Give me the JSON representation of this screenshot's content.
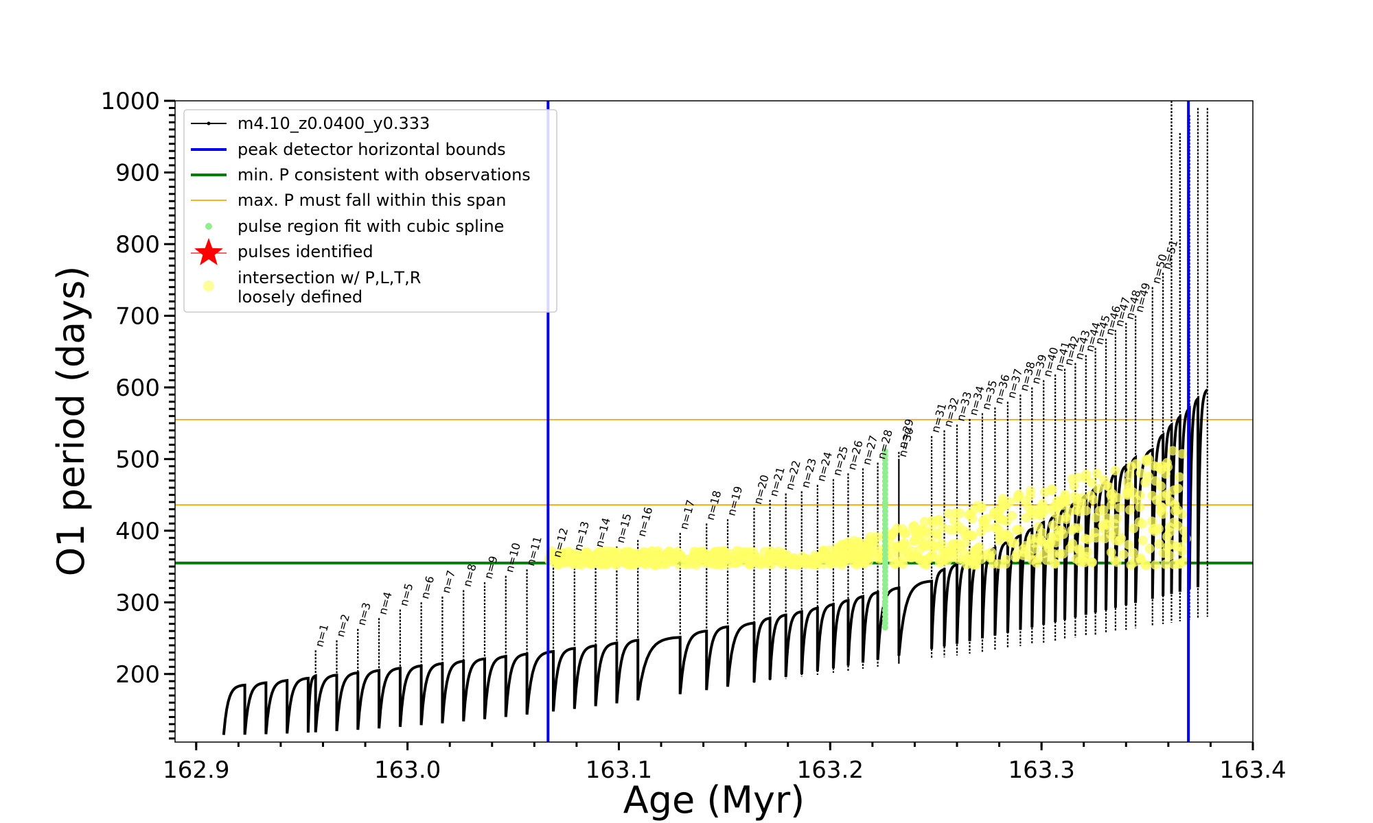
{
  "chart_data": {
    "type": "line",
    "xlabel": "Age (Myr)",
    "ylabel": "O1 period (days)",
    "xlim": [
      162.9,
      163.4
    ],
    "ylim": [
      105,
      1000
    ],
    "x_ticks": [
      "162.9",
      "163.0",
      "163.1",
      "163.2",
      "163.3",
      "163.4"
    ],
    "x_tick_values": [
      162.9,
      163.0,
      163.1,
      163.2,
      163.3,
      163.4
    ],
    "y_ticks": [
      "200",
      "300",
      "400",
      "500",
      "600",
      "700",
      "800",
      "900",
      "1000"
    ],
    "y_tick_values": [
      200,
      300,
      400,
      500,
      600,
      700,
      800,
      900,
      1000
    ],
    "legend_position": "upper-left",
    "legend": [
      {
        "label": "m4.10_z0.0400_y0.333",
        "kind": "line-dot",
        "color": "#000000"
      },
      {
        "label": "peak detector horizontal bounds",
        "kind": "line",
        "color": "#0000ee"
      },
      {
        "label": "min. P consistent with observations",
        "kind": "line",
        "color": "#008000"
      },
      {
        "label": "max. P must fall within this span",
        "kind": "thin-line",
        "color": "#ffa500"
      },
      {
        "label": "pulse region fit with cubic spline",
        "kind": "dot",
        "color": "#90ee90"
      },
      {
        "label": "pulses identified",
        "kind": "star",
        "color": "#ff0000"
      },
      {
        "label": "intersection w/ P,L,T,R",
        "label2": "loosely defined",
        "kind": "big-dot",
        "color": "#ffff99"
      }
    ],
    "vertical_lines": [
      {
        "x": 163.0665,
        "color": "#0000ee",
        "role": "peak detector horizontal bounds"
      },
      {
        "x": 163.3695,
        "color": "#0000ee",
        "role": "peak detector horizontal bounds"
      }
    ],
    "horizontal_lines": [
      {
        "y": 355,
        "color": "#008000",
        "role": "min. P consistent with observations"
      },
      {
        "y": 436,
        "color": "#ffa500",
        "role": "max. P span lower"
      },
      {
        "y": 555,
        "color": "#ffa500",
        "role": "max. P span upper"
      }
    ],
    "pulses": [
      {
        "n": 1,
        "x": 162.9565,
        "peak": 233
      },
      {
        "n": 2,
        "x": 162.9665,
        "peak": 247
      },
      {
        "n": 3,
        "x": 162.9765,
        "peak": 263
      },
      {
        "n": 4,
        "x": 162.9865,
        "peak": 278
      },
      {
        "n": 5,
        "x": 162.9965,
        "peak": 290
      },
      {
        "n": 6,
        "x": 163.0065,
        "peak": 300
      },
      {
        "n": 7,
        "x": 163.0165,
        "peak": 308
      },
      {
        "n": 8,
        "x": 163.0265,
        "peak": 317
      },
      {
        "n": 9,
        "x": 163.0365,
        "peak": 328
      },
      {
        "n": 10,
        "x": 163.0465,
        "peak": 337
      },
      {
        "n": 11,
        "x": 163.0565,
        "peak": 346
      },
      {
        "n": 12,
        "x": 163.069,
        "peak": 358
      },
      {
        "n": 13,
        "x": 163.079,
        "peak": 367
      },
      {
        "n": 14,
        "x": 163.089,
        "peak": 372
      },
      {
        "n": 15,
        "x": 163.099,
        "peak": 378
      },
      {
        "n": 16,
        "x": 163.109,
        "peak": 387
      },
      {
        "n": 17,
        "x": 163.129,
        "peak": 397
      },
      {
        "n": 18,
        "x": 163.1415,
        "peak": 410
      },
      {
        "n": 19,
        "x": 163.1515,
        "peak": 416
      },
      {
        "n": 20,
        "x": 163.164,
        "peak": 432
      },
      {
        "n": 21,
        "x": 163.1715,
        "peak": 443
      },
      {
        "n": 22,
        "x": 163.179,
        "peak": 452
      },
      {
        "n": 23,
        "x": 163.1865,
        "peak": 455
      },
      {
        "n": 24,
        "x": 163.194,
        "peak": 464
      },
      {
        "n": 25,
        "x": 163.2015,
        "peak": 472
      },
      {
        "n": 26,
        "x": 163.2085,
        "peak": 480
      },
      {
        "n": 27,
        "x": 163.2155,
        "peak": 487
      },
      {
        "n": 28,
        "x": 163.2225,
        "peak": 495
      },
      {
        "n": 29,
        "x": 163.2325,
        "peak": 510
      },
      {
        "n": 30,
        "x": 163.2325,
        "peak": 498
      },
      {
        "n": 31,
        "x": 163.248,
        "peak": 532
      },
      {
        "n": 32,
        "x": 163.254,
        "peak": 540
      },
      {
        "n": 33,
        "x": 163.26,
        "peak": 548
      },
      {
        "n": 34,
        "x": 163.266,
        "peak": 556
      },
      {
        "n": 35,
        "x": 163.272,
        "peak": 564
      },
      {
        "n": 36,
        "x": 163.278,
        "peak": 572
      },
      {
        "n": 37,
        "x": 163.284,
        "peak": 580
      },
      {
        "n": 38,
        "x": 163.29,
        "peak": 590
      },
      {
        "n": 39,
        "x": 163.2955,
        "peak": 600
      },
      {
        "n": 40,
        "x": 163.301,
        "peak": 610
      },
      {
        "n": 41,
        "x": 163.3065,
        "peak": 618
      },
      {
        "n": 42,
        "x": 163.311,
        "peak": 626
      },
      {
        "n": 43,
        "x": 163.316,
        "peak": 634
      },
      {
        "n": 44,
        "x": 163.321,
        "peak": 645
      },
      {
        "n": 45,
        "x": 163.3255,
        "peak": 655
      },
      {
        "n": 46,
        "x": 163.3305,
        "peak": 668
      },
      {
        "n": 47,
        "x": 163.335,
        "peak": 680
      },
      {
        "n": 48,
        "x": 163.34,
        "peak": 690
      },
      {
        "n": 49,
        "x": 163.3445,
        "peak": 700
      },
      {
        "n": 50,
        "x": 163.3525,
        "peak": 740
      },
      {
        "n": 51,
        "x": 163.3575,
        "peak": 760
      }
    ],
    "late_pulses": [
      {
        "x": 163.3615,
        "peak": 1000
      },
      {
        "x": 163.3655,
        "peak": 955
      },
      {
        "x": 163.37,
        "peak": 980
      },
      {
        "x": 163.374,
        "peak": 990
      },
      {
        "x": 163.3785,
        "peak": 990
      }
    ],
    "spline_fit_x": 163.226,
    "spline_fit_range": [
      265,
      515
    ]
  }
}
